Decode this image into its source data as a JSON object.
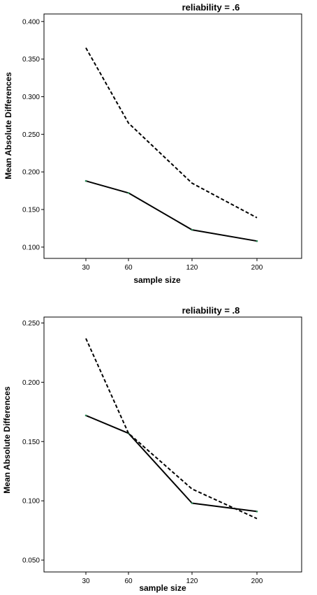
{
  "chart_data": [
    {
      "type": "line",
      "title": "reliability = .6",
      "xlabel": "sample size",
      "ylabel": "Mean Absolute Differences",
      "categories": [
        "30",
        "60",
        "120",
        "200"
      ],
      "y_ticks": [
        "0.100",
        "0.150",
        "0.200",
        "0.250",
        "0.300",
        "0.350",
        "0.400"
      ],
      "ylim": [
        0.085,
        0.41
      ],
      "grid": false,
      "legend": "none",
      "series": [
        {
          "style": "solid",
          "color": "#000000",
          "values": [
            0.188,
            0.172,
            0.123,
            0.108
          ]
        },
        {
          "style": "dashed",
          "color": "#000000",
          "values": [
            0.365,
            0.265,
            0.185,
            0.139
          ]
        }
      ]
    },
    {
      "type": "line",
      "title": "reliability = .8",
      "xlabel": "sample size",
      "ylabel": "Mean Absolute Differences",
      "categories": [
        "30",
        "60",
        "120",
        "200"
      ],
      "y_ticks": [
        "0.050",
        "0.100",
        "0.150",
        "0.200",
        "0.250"
      ],
      "ylim": [
        0.04,
        0.255
      ],
      "grid": false,
      "legend": "none",
      "series": [
        {
          "style": "solid",
          "color": "#000000",
          "values": [
            0.172,
            0.157,
            0.098,
            0.091
          ]
        },
        {
          "style": "dashed",
          "color": "#000000",
          "values": [
            0.237,
            0.157,
            0.11,
            0.085
          ]
        }
      ]
    }
  ]
}
